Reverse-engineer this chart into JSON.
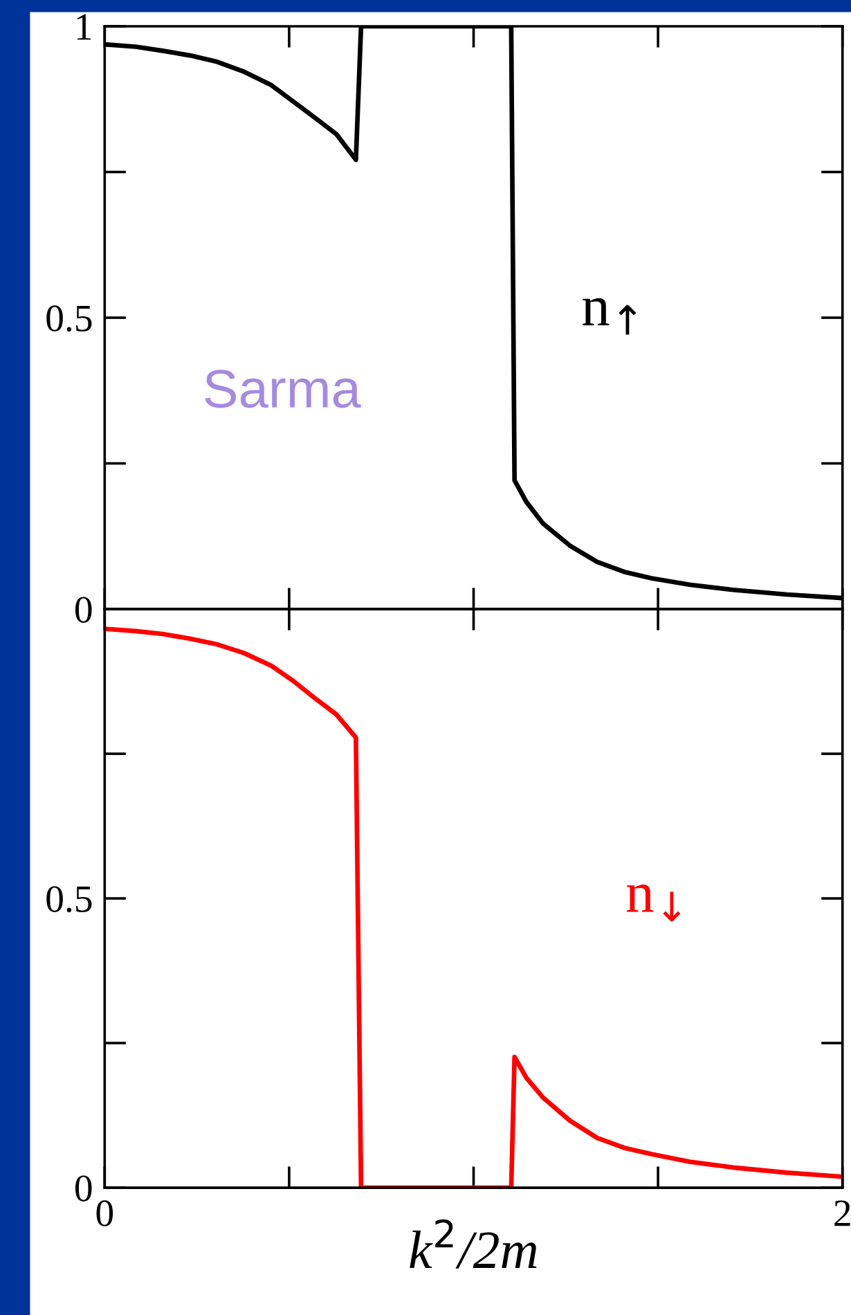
{
  "chart_data": [
    {
      "type": "line",
      "annotations": [
        "Sarma"
      ],
      "xlim": [
        0,
        2
      ],
      "xticks": [
        {
          "value": 0,
          "label": null
        },
        {
          "value": 0.5,
          "label": null
        },
        {
          "value": 1,
          "label": null
        },
        {
          "value": 1.5,
          "label": null
        },
        {
          "value": 2,
          "label": null
        }
      ],
      "ylim": [
        0,
        1
      ],
      "yticks": [
        0,
        {
          "value": 0.25,
          "label": null
        },
        0.5,
        {
          "value": 0.75,
          "label": null
        },
        1
      ],
      "tick_labels": "y",
      "grid": false,
      "marker": "none",
      "line_style": "solid",
      "series": [
        {
          "name": "n$_{↑}$",
          "color": "#000000",
          "x": [
            0,
            0.084,
            0.157,
            0.231,
            0.305,
            0.378,
            0.452,
            0.511,
            0.57,
            0.628,
            0.681,
            0.695,
            1.102,
            1.111,
            1.143,
            1.188,
            1.261,
            1.335,
            1.408,
            1.482,
            1.585,
            1.703,
            1.85,
            2.0
          ],
          "values": [
            0.969,
            0.965,
            0.958,
            0.95,
            0.939,
            0.922,
            0.899,
            0.871,
            0.843,
            0.815,
            0.771,
            1,
            1,
            0.221,
            0.184,
            0.147,
            0.109,
            0.081,
            0.064,
            0.053,
            0.042,
            0.033,
            0.025,
            0.019
          ]
        }
      ]
    },
    {
      "type": "line",
      "xlabel": "k$^{2}$/2m",
      "xlim": [
        0,
        2
      ],
      "xticks": [
        0,
        {
          "value": 0.5,
          "label": null
        },
        {
          "value": 1,
          "label": null
        },
        {
          "value": 1.5,
          "label": null
        },
        2
      ],
      "ylim": [
        0,
        1
      ],
      "yticks": [
        0,
        {
          "value": 0.25,
          "label": null
        },
        0.5,
        {
          "value": 0.75,
          "label": null
        },
        {
          "value": 1,
          "label": null
        }
      ],
      "grid": false,
      "marker": "none",
      "line_style": "solid",
      "series": [
        {
          "name": "n$_{↓}$",
          "color": "#ff0000",
          "x": [
            0,
            0.084,
            0.157,
            0.231,
            0.305,
            0.378,
            0.452,
            0.511,
            0.57,
            0.628,
            0.681,
            0.695,
            1.102,
            1.111,
            1.143,
            1.188,
            1.261,
            1.335,
            1.408,
            1.482,
            1.585,
            1.703,
            1.85,
            2.0
          ],
          "values": [
            0.966,
            0.962,
            0.957,
            0.949,
            0.939,
            0.924,
            0.902,
            0.876,
            0.846,
            0.818,
            0.778,
            0,
            0,
            0.226,
            0.19,
            0.156,
            0.116,
            0.086,
            0.069,
            0.058,
            0.045,
            0.035,
            0.026,
            0.019
          ]
        }
      ]
    }
  ]
}
